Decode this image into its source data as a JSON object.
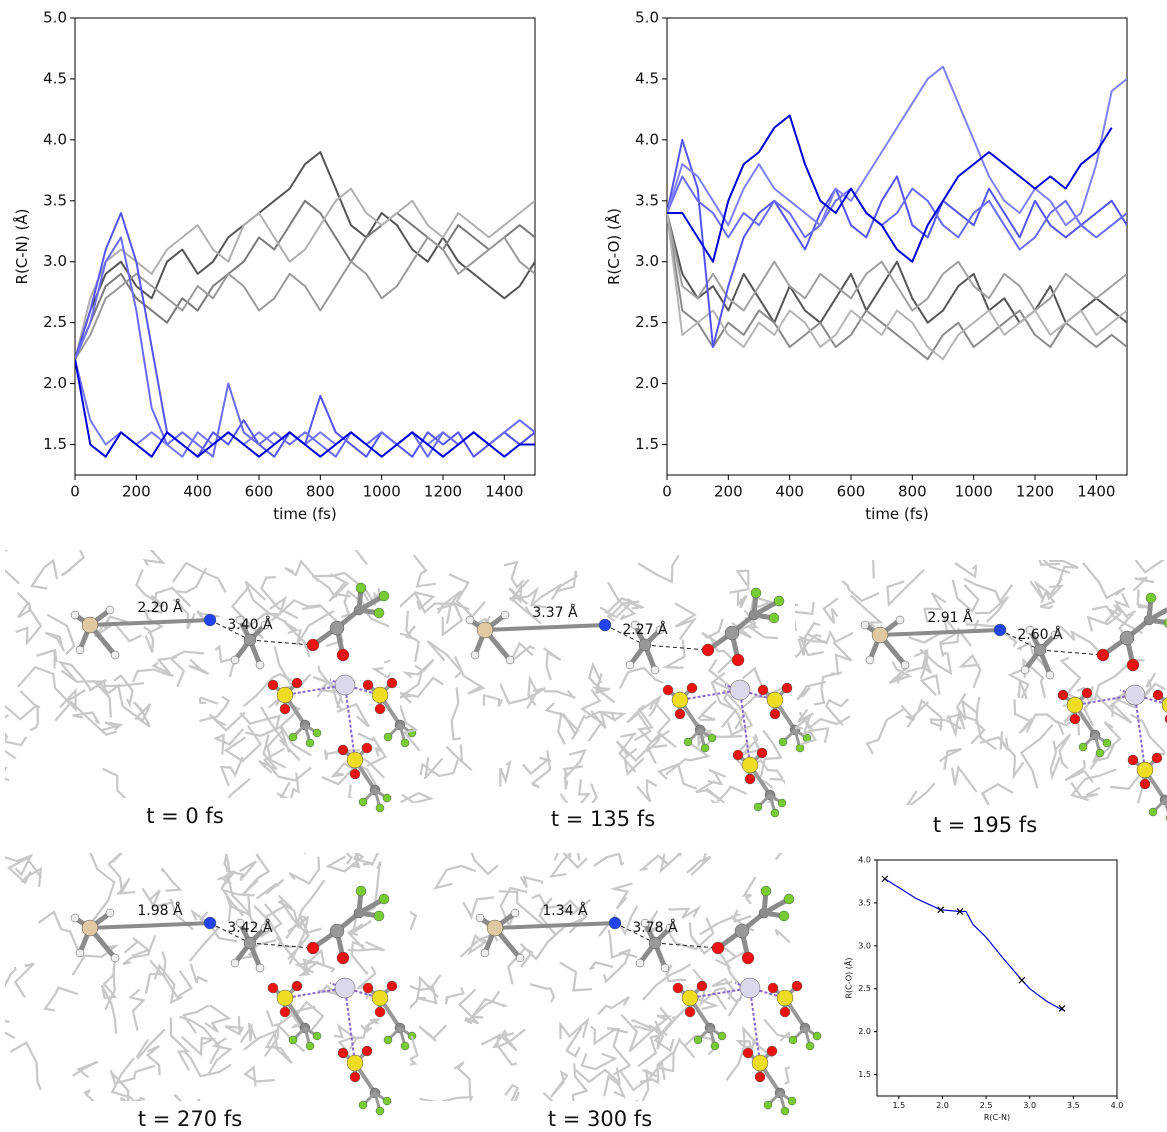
{
  "chart_data": [
    {
      "type": "line",
      "xlabel": "time (fs)",
      "ylabel": "R(C-N) (Å)",
      "xlim": [
        0,
        1500
      ],
      "ylim": [
        1.25,
        5.0
      ],
      "xticks": [
        0,
        200,
        400,
        600,
        800,
        1000,
        1200,
        1400
      ],
      "yticks": [
        1.5,
        {
          "value": 2,
          "label": "2.0"
        },
        2.5,
        {
          "value": 3,
          "label": "3.0"
        },
        3.5,
        {
          "value": 4,
          "label": "4.0"
        },
        4.5,
        {
          "value": 5,
          "label": "5.0"
        }
      ],
      "x": [
        0,
        50,
        100,
        150,
        200,
        250,
        300,
        350,
        400,
        450,
        500,
        550,
        600,
        650,
        700,
        750,
        800,
        850,
        900,
        950,
        1000,
        1050,
        1100,
        1150,
        1200,
        1250,
        1300,
        1350,
        1400,
        1450,
        1500
      ],
      "series": [
        {
          "color": "#555555",
          "values": [
            2.2,
            2.6,
            2.9,
            3.0,
            2.8,
            2.7,
            3.0,
            3.1,
            2.9,
            3.0,
            3.2,
            3.3,
            3.4,
            3.5,
            3.6,
            3.8,
            3.9,
            3.6,
            3.3,
            3.2,
            3.4,
            3.3,
            3.1,
            3.0,
            3.2,
            3.0,
            2.9,
            2.8,
            2.7,
            2.8,
            3.0
          ]
        },
        {
          "color": "#7a7a7a",
          "values": [
            2.2,
            2.5,
            2.8,
            2.9,
            2.7,
            2.6,
            2.5,
            2.7,
            2.6,
            2.8,
            2.9,
            3.0,
            3.2,
            3.1,
            3.3,
            3.5,
            3.4,
            3.2,
            3.0,
            3.2,
            3.3,
            3.4,
            3.3,
            3.2,
            3.1,
            3.3,
            3.2,
            3.1,
            3.2,
            3.3,
            3.2
          ]
        },
        {
          "color": "#9a9a9a",
          "values": [
            2.2,
            2.4,
            2.7,
            2.8,
            2.9,
            2.8,
            2.7,
            2.6,
            2.8,
            2.7,
            2.9,
            2.8,
            2.6,
            2.7,
            2.9,
            2.8,
            2.6,
            2.8,
            3.0,
            2.9,
            2.7,
            2.8,
            3.0,
            3.2,
            3.1,
            2.9,
            3.0,
            3.1,
            3.2,
            3.0,
            2.9
          ]
        },
        {
          "color": "#b0b0b0",
          "values": [
            2.2,
            2.7,
            3.0,
            3.1,
            3.0,
            2.9,
            3.1,
            3.2,
            3.3,
            3.1,
            3.0,
            3.3,
            3.4,
            3.2,
            3.0,
            3.1,
            3.3,
            3.5,
            3.6,
            3.4,
            3.3,
            3.4,
            3.5,
            3.3,
            3.2,
            3.4,
            3.3,
            3.2,
            3.3,
            3.4,
            3.5
          ]
        },
        {
          "color": "#7777ff",
          "values": [
            2.2,
            1.7,
            1.5,
            1.6,
            1.5,
            1.6,
            1.5,
            1.4,
            1.6,
            1.5,
            1.6,
            1.5,
            1.6,
            1.5,
            1.6,
            1.5,
            1.6,
            1.5,
            1.6,
            1.5,
            1.6,
            1.5,
            1.6,
            1.5,
            1.6,
            1.5,
            1.6,
            1.5,
            1.6,
            1.5,
            1.6
          ]
        },
        {
          "color": "#5555f5",
          "values": [
            2.2,
            2.6,
            3.1,
            3.4,
            3.0,
            2.3,
            1.6,
            1.5,
            1.4,
            1.6,
            1.5,
            1.7,
            1.5,
            1.4,
            1.6,
            1.5,
            1.9,
            1.6,
            1.5,
            1.4,
            1.6,
            1.5,
            1.4,
            1.6,
            1.5,
            1.6,
            1.4,
            1.5,
            1.6,
            1.5,
            1.6
          ]
        },
        {
          "color": "#6a6aff",
          "values": [
            2.2,
            2.5,
            3.0,
            3.2,
            2.6,
            1.8,
            1.5,
            1.6,
            1.5,
            1.4,
            2.0,
            1.6,
            1.5,
            1.6,
            1.5,
            1.6,
            1.5,
            1.4,
            1.6,
            1.5,
            1.6,
            1.5,
            1.6,
            1.4,
            1.6,
            1.5,
            1.6,
            1.5,
            1.6,
            1.7,
            1.6
          ]
        },
        {
          "color": "#0000dd",
          "values": [
            2.2,
            1.5,
            1.4,
            1.6,
            1.5,
            1.4,
            1.6,
            1.5,
            1.4,
            1.5,
            1.6,
            1.5,
            1.4,
            1.5,
            1.6,
            1.5,
            1.4,
            1.5,
            1.6,
            1.5,
            1.4,
            1.5,
            1.6,
            1.5,
            1.4,
            1.5,
            1.6,
            1.5,
            1.4,
            1.5,
            1.5
          ]
        }
      ]
    },
    {
      "type": "line",
      "xlabel": "time (fs)",
      "ylabel": "R(C-O) (Å)",
      "xlim": [
        0,
        1500
      ],
      "ylim": [
        1.25,
        5.0
      ],
      "xticks": [
        0,
        200,
        400,
        600,
        800,
        1000,
        1200,
        1400
      ],
      "yticks": [
        1.5,
        {
          "value": 2,
          "label": "2.0"
        },
        2.5,
        {
          "value": 3,
          "label": "3.0"
        },
        3.5,
        {
          "value": 4,
          "label": "4.0"
        },
        4.5,
        {
          "value": 5,
          "label": "5.0"
        }
      ],
      "x": [
        0,
        50,
        100,
        150,
        200,
        250,
        300,
        350,
        400,
        450,
        500,
        550,
        600,
        650,
        700,
        750,
        800,
        850,
        900,
        950,
        1000,
        1050,
        1100,
        1150,
        1200,
        1250,
        1300,
        1350,
        1400,
        1450,
        1500
      ],
      "series": [
        {
          "color": "#555555",
          "values": [
            3.4,
            2.9,
            2.7,
            2.8,
            2.6,
            2.9,
            2.7,
            2.5,
            2.8,
            2.6,
            2.5,
            2.7,
            2.9,
            2.6,
            2.8,
            3.0,
            2.7,
            2.5,
            2.6,
            2.8,
            2.9,
            2.6,
            2.7,
            2.5,
            2.6,
            2.8,
            2.5,
            2.6,
            2.7,
            2.6,
            2.5
          ]
        },
        {
          "color": "#8a8a8a",
          "values": [
            3.4,
            2.6,
            2.5,
            2.3,
            2.5,
            2.4,
            2.6,
            2.5,
            2.3,
            2.4,
            2.5,
            2.3,
            2.4,
            2.6,
            2.5,
            2.4,
            2.3,
            2.2,
            2.4,
            2.5,
            2.3,
            2.4,
            2.5,
            2.6,
            2.4,
            2.3,
            2.5,
            2.4,
            2.3,
            2.4,
            2.3
          ]
        },
        {
          "color": "#a0a0a0",
          "values": [
            3.4,
            2.8,
            2.7,
            2.9,
            2.7,
            2.6,
            2.8,
            3.0,
            2.8,
            2.7,
            2.9,
            2.8,
            2.7,
            2.9,
            3.0,
            2.8,
            2.6,
            2.7,
            2.9,
            3.0,
            2.8,
            2.7,
            2.9,
            2.8,
            2.6,
            2.7,
            2.9,
            2.8,
            2.7,
            2.8,
            2.9
          ]
        },
        {
          "color": "#b5b5b5",
          "values": [
            3.4,
            2.4,
            2.5,
            2.6,
            2.4,
            2.3,
            2.5,
            2.4,
            2.6,
            2.5,
            2.3,
            2.4,
            2.6,
            2.5,
            2.4,
            2.6,
            2.5,
            2.3,
            2.2,
            2.4,
            2.5,
            2.6,
            2.4,
            2.5,
            2.6,
            2.4,
            2.5,
            2.6,
            2.4,
            2.5,
            2.6
          ]
        },
        {
          "color": "#5555f5",
          "values": [
            3.4,
            4.0,
            3.6,
            2.3,
            2.8,
            3.2,
            3.4,
            3.5,
            3.3,
            3.1,
            3.4,
            3.6,
            3.3,
            3.2,
            3.5,
            3.7,
            3.3,
            3.2,
            3.5,
            3.4,
            3.3,
            3.6,
            3.4,
            3.2,
            3.5,
            3.3,
            3.2,
            3.3,
            3.4,
            3.5,
            3.3
          ]
        },
        {
          "color": "#6a6aff",
          "values": [
            3.4,
            3.7,
            3.5,
            3.4,
            3.2,
            3.4,
            3.3,
            3.5,
            3.4,
            3.2,
            3.3,
            3.5,
            3.6,
            3.4,
            3.3,
            3.4,
            3.6,
            3.5,
            3.3,
            3.2,
            3.4,
            3.5,
            3.3,
            3.1,
            3.2,
            3.4,
            3.5,
            3.3,
            3.2,
            3.3,
            3.4
          ]
        },
        {
          "color": "#8080ff",
          "values": [
            3.4,
            3.8,
            3.7,
            3.5,
            3.3,
            3.6,
            3.8,
            3.6,
            3.5,
            3.4,
            3.3,
            3.6,
            3.5,
            3.7,
            3.9,
            4.1,
            4.3,
            4.5,
            4.6,
            4.3,
            4.0,
            3.7,
            3.5,
            3.4,
            3.6,
            3.5,
            3.3,
            3.4,
            3.8,
            4.4,
            4.5
          ]
        },
        {
          "color": "#0000dd",
          "values": [
            3.4,
            3.4,
            3.2,
            3.0,
            3.5,
            3.8,
            3.9,
            4.1,
            4.2,
            3.8,
            3.5,
            3.4,
            3.6,
            3.4,
            3.3,
            3.1,
            3.0,
            3.3,
            3.5,
            3.7,
            3.8,
            3.9,
            3.8,
            3.7,
            3.6,
            3.7,
            3.6,
            3.8,
            3.9,
            4.1,
            null
          ]
        }
      ]
    },
    {
      "type": "line",
      "xlabel": "R(C-N)",
      "ylabel": "R(C-O) (Å)",
      "xlim": [
        1.25,
        4.0
      ],
      "ylim": [
        1.25,
        4.0
      ],
      "xticks": [
        1.5,
        {
          "value": 2,
          "label": "2.0"
        },
        2.5,
        {
          "value": 3,
          "label": "3.0"
        },
        3.5,
        {
          "value": 4,
          "label": "4.0"
        }
      ],
      "yticks": [
        1.5,
        {
          "value": 2,
          "label": "2.0"
        },
        2.5,
        {
          "value": 3,
          "label": "3.0"
        },
        3.5,
        {
          "value": 4,
          "label": "4.0"
        }
      ],
      "x": [
        1.34,
        1.5,
        1.7,
        1.98,
        2.2,
        2.27,
        2.35,
        2.5,
        2.7,
        2.91,
        3.0,
        3.2,
        3.38
      ],
      "series": [
        {
          "color": "#0000dd",
          "values": [
            3.78,
            3.68,
            3.55,
            3.42,
            3.4,
            3.4,
            3.25,
            3.1,
            2.85,
            2.6,
            2.5,
            2.35,
            2.25
          ]
        }
      ],
      "markers": {
        "x": [
          2.2,
          3.37,
          2.91,
          1.98,
          1.34
        ],
        "y": [
          3.4,
          2.27,
          2.6,
          3.42,
          3.78
        ]
      }
    }
  ],
  "snapshots": [
    {
      "caption": "t = 0 fs",
      "labels": [
        "2.20 Å",
        "3.40 Å"
      ]
    },
    {
      "caption": "t = 135 fs",
      "labels": [
        "3.37 Å",
        "2.27 Å"
      ]
    },
    {
      "caption": "t = 195 fs",
      "labels": [
        "2.91 Å",
        "2.60 Å"
      ]
    },
    {
      "caption": "t = 270 fs",
      "labels": [
        "1.98 Å",
        "3.42 Å"
      ]
    },
    {
      "caption": "t = 300 fs",
      "labels": [
        "1.34 Å",
        "3.78 Å"
      ]
    }
  ]
}
